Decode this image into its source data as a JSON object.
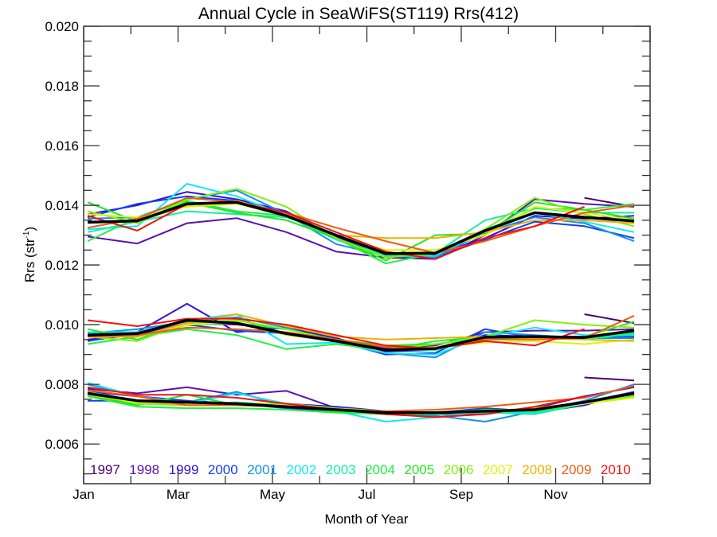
{
  "chart_data": {
    "type": "line",
    "title": "Annual Cycle in SeaWiFS(ST119) Rrs(412)",
    "xlabel": "Month of Year",
    "ylabel": "Rrs (str",
    "ylabel_superscript": "-1",
    "ylabel_close": ")",
    "ylim": [
      0.00467,
      0.02
    ],
    "yticks": [
      0.006,
      0.008,
      0.01,
      0.012,
      0.014,
      0.016,
      0.018,
      0.02
    ],
    "ytick_labels": [
      "0.006",
      "0.008",
      "0.010",
      "0.012",
      "0.014",
      "0.016",
      "0.018",
      "0.020"
    ],
    "xticks_major_labels": [
      "Jan",
      "Mar",
      "May",
      "Jul",
      "Sep",
      "Nov"
    ],
    "x": [
      "Jan",
      "Feb",
      "Mar",
      "Apr",
      "May",
      "Jun",
      "Jul",
      "Aug",
      "Sep",
      "Oct",
      "Nov",
      "Dec"
    ],
    "grid": false,
    "legend_position": "bottom-inside",
    "mean_color": "#000000",
    "bands": [
      "upper",
      "middle",
      "lower"
    ],
    "series": [
      {
        "name": "1997",
        "color": "#4a0070",
        "upper": [
          null,
          null,
          null,
          null,
          null,
          null,
          null,
          null,
          null,
          null,
          0.01425,
          0.01395
        ],
        "middle": [
          null,
          null,
          null,
          null,
          null,
          null,
          null,
          null,
          null,
          null,
          0.01035,
          0.01005
        ],
        "lower": [
          null,
          null,
          null,
          null,
          null,
          null,
          null,
          null,
          null,
          null,
          0.00823,
          0.00813
        ]
      },
      {
        "name": "1998",
        "color": "#5a10b0",
        "upper": [
          0.01295,
          0.01272,
          0.0134,
          0.01357,
          0.0131,
          0.01245,
          0.01225,
          0.0122,
          0.013,
          0.0142,
          0.01405,
          0.01395
        ],
        "middle": [
          0.0095,
          0.00965,
          0.01005,
          0.01,
          0.00985,
          0.0095,
          0.0092,
          0.0093,
          0.00975,
          0.0098,
          0.0098,
          0.00985
        ],
        "lower": [
          0.00785,
          0.0077,
          0.0079,
          0.00765,
          0.00778,
          0.0072,
          0.00705,
          0.007,
          0.007,
          0.0072,
          0.0076,
          0.0079
        ]
      },
      {
        "name": "1999",
        "color": "#3010e0",
        "upper": [
          0.0137,
          0.014,
          0.01445,
          0.0142,
          0.0138,
          0.01295,
          0.01235,
          0.01235,
          0.0129,
          0.01365,
          0.01355,
          0.01365
        ],
        "middle": [
          0.0097,
          0.00975,
          0.0107,
          0.00975,
          0.0099,
          0.00955,
          0.0091,
          0.00915,
          0.00965,
          0.0096,
          0.0096,
          0.0097
        ],
        "lower": [
          0.00775,
          0.0076,
          0.00745,
          0.0073,
          0.00735,
          0.00725,
          0.0071,
          0.007,
          0.0071,
          0.00705,
          0.0073,
          0.00775
        ]
      },
      {
        "name": "2000",
        "color": "#1040f0",
        "upper": [
          0.0136,
          0.01405,
          0.0143,
          0.01415,
          0.01375,
          0.0129,
          0.0123,
          0.01225,
          0.01285,
          0.01345,
          0.0133,
          0.0129
        ],
        "middle": [
          0.00945,
          0.0097,
          0.01,
          0.0098,
          0.0097,
          0.00945,
          0.009,
          0.00905,
          0.00985,
          0.00955,
          0.00955,
          0.0096
        ],
        "lower": [
          0.00745,
          0.00745,
          0.00745,
          0.00735,
          0.0072,
          0.0071,
          0.007,
          0.00705,
          0.0072,
          0.0071,
          0.0074,
          0.00775
        ]
      },
      {
        "name": "2001",
        "color": "#1090f0",
        "upper": [
          0.01355,
          0.0136,
          0.0142,
          0.0145,
          0.0137,
          0.0127,
          0.0123,
          0.01225,
          0.0131,
          0.0136,
          0.0134,
          0.0128
        ],
        "middle": [
          0.0097,
          0.00985,
          0.0101,
          0.01025,
          0.0099,
          0.0094,
          0.00905,
          0.0089,
          0.00975,
          0.00965,
          0.00955,
          0.00955
        ],
        "lower": [
          0.008,
          0.0076,
          0.0074,
          0.00775,
          0.00725,
          0.00715,
          0.007,
          0.00695,
          0.00675,
          0.0071,
          0.00745,
          0.008
        ]
      },
      {
        "name": "2002",
        "color": "#10e8f0",
        "upper": [
          0.0132,
          0.0133,
          0.01472,
          0.0143,
          0.01365,
          0.01285,
          0.0123,
          0.0123,
          0.0132,
          0.01375,
          0.01345,
          0.0131
        ],
        "middle": [
          0.00975,
          0.00975,
          0.01015,
          0.01035,
          0.00935,
          0.0094,
          0.00905,
          0.009,
          0.0096,
          0.0099,
          0.00965,
          0.00965
        ],
        "lower": [
          0.00805,
          0.0076,
          0.00735,
          0.0077,
          0.00735,
          0.0071,
          0.00675,
          0.0069,
          0.0071,
          0.00705,
          0.0074,
          0.00755
        ]
      },
      {
        "name": "2003",
        "color": "#10f0a0",
        "upper": [
          0.0131,
          0.01345,
          0.0138,
          0.0137,
          0.0136,
          0.013,
          0.0123,
          0.0124,
          0.0135,
          0.0139,
          0.01375,
          0.01375
        ],
        "middle": [
          0.0096,
          0.0096,
          0.01,
          0.01005,
          0.00965,
          0.0095,
          0.00915,
          0.00915,
          0.0096,
          0.00955,
          0.0095,
          0.0097
        ],
        "lower": [
          0.00775,
          0.00745,
          0.0073,
          0.0074,
          0.0073,
          0.00715,
          0.0071,
          0.00705,
          0.00705,
          0.007,
          0.00735,
          0.00765
        ]
      },
      {
        "name": "2004",
        "color": "#20f040",
        "upper": [
          0.0128,
          0.0136,
          0.01415,
          0.0138,
          0.01365,
          0.0129,
          0.01205,
          0.0124,
          0.0131,
          0.0139,
          0.01385,
          0.01405
        ],
        "middle": [
          0.00935,
          0.0096,
          0.00985,
          0.00965,
          0.00918,
          0.00935,
          0.00915,
          0.00945,
          0.0096,
          0.0096,
          0.00955,
          0.00975
        ],
        "lower": [
          0.0076,
          0.00725,
          0.0072,
          0.0072,
          0.00715,
          0.00705,
          0.007,
          0.007,
          0.0071,
          0.0071,
          0.00735,
          0.00765
        ]
      },
      {
        "name": "2005",
        "color": "#20e820",
        "upper": [
          0.0141,
          0.01345,
          0.0141,
          0.01375,
          0.0135,
          0.0129,
          0.01215,
          0.013,
          0.01305,
          0.0141,
          0.01385,
          0.01355
        ],
        "middle": [
          0.00985,
          0.0095,
          0.01,
          0.01005,
          0.00985,
          0.0095,
          0.0093,
          0.00935,
          0.00955,
          0.00955,
          0.0096,
          0.0101
        ],
        "lower": [
          0.00765,
          0.0073,
          0.00765,
          0.0073,
          0.00725,
          0.0071,
          0.00705,
          0.00705,
          0.00715,
          0.00715,
          0.0074,
          0.0077
        ]
      },
      {
        "name": "2006",
        "color": "#80f010",
        "upper": [
          0.0138,
          0.0134,
          0.0142,
          0.01455,
          0.01395,
          0.0129,
          0.01225,
          0.0124,
          0.0132,
          0.01425,
          0.0137,
          0.0133
        ],
        "middle": [
          0.0096,
          0.00945,
          0.01005,
          0.01015,
          0.00985,
          0.00945,
          0.00915,
          0.00935,
          0.0096,
          0.01015,
          0.01,
          0.0099
        ],
        "lower": [
          0.0077,
          0.00735,
          0.0073,
          0.00735,
          0.00735,
          0.0072,
          0.0071,
          0.00705,
          0.0071,
          0.0072,
          0.0074,
          0.0076
        ]
      },
      {
        "name": "2007",
        "color": "#e0f010",
        "upper": [
          0.0137,
          0.0136,
          0.01395,
          0.01405,
          0.01365,
          0.013,
          0.0125,
          0.0125,
          0.013,
          0.01395,
          0.01375,
          0.0135
        ],
        "middle": [
          0.00965,
          0.0096,
          0.01,
          0.0101,
          0.00965,
          0.00945,
          0.00915,
          0.00925,
          0.0094,
          0.00945,
          0.00935,
          0.0095
        ],
        "lower": [
          0.00765,
          0.0074,
          0.00735,
          0.00735,
          0.0073,
          0.00715,
          0.00705,
          0.00705,
          0.0071,
          0.00715,
          0.00735,
          0.00755
        ]
      },
      {
        "name": "2008",
        "color": "#f0b000",
        "upper": [
          0.01345,
          0.01345,
          0.014,
          0.01415,
          0.0137,
          0.013,
          0.0129,
          0.0129,
          0.0131,
          0.0135,
          0.0135,
          0.0134
        ],
        "middle": [
          0.0096,
          0.0096,
          0.01005,
          0.01035,
          0.00995,
          0.0096,
          0.0095,
          0.00955,
          0.0096,
          0.00955,
          0.0095,
          0.00945
        ],
        "lower": [
          0.00765,
          0.00745,
          0.0073,
          0.0073,
          0.00725,
          0.00715,
          0.0071,
          0.00705,
          0.0071,
          0.0072,
          0.0074,
          0.0077
        ]
      },
      {
        "name": "2009",
        "color": "#f05a10",
        "upper": [
          0.01325,
          0.01355,
          0.01425,
          0.0141,
          0.01375,
          0.01325,
          0.0128,
          0.0124,
          0.0128,
          0.0133,
          0.01375,
          0.014
        ],
        "middle": [
          0.0096,
          0.00965,
          0.0099,
          0.00985,
          0.00975,
          0.0095,
          0.00925,
          0.0092,
          0.0095,
          0.0095,
          0.00955,
          0.0103
        ],
        "lower": [
          0.0078,
          0.0076,
          0.0073,
          0.0073,
          0.00725,
          0.00715,
          0.0071,
          0.00715,
          0.00725,
          0.0074,
          0.00755,
          0.00795
        ]
      },
      {
        "name": "2010",
        "color": "#f01010",
        "upper": [
          0.01365,
          0.01315,
          0.01405,
          0.0141,
          0.01375,
          0.0131,
          0.01245,
          0.0122,
          0.0129,
          0.0133,
          0.01395,
          null
        ],
        "middle": [
          0.01015,
          0.00995,
          0.0102,
          0.0102,
          0.01,
          0.00965,
          0.0093,
          0.0092,
          0.00945,
          0.0093,
          0.00985,
          null
        ],
        "lower": [
          0.0079,
          0.00765,
          0.00765,
          0.00755,
          0.00735,
          0.00715,
          0.007,
          0.0069,
          0.007,
          0.00725,
          0.0076,
          null
        ]
      }
    ],
    "mean": {
      "name": "Mean",
      "upper": [
        0.01343,
        0.01348,
        0.01405,
        0.0141,
        0.01365,
        0.013,
        0.01238,
        0.0124,
        0.01315,
        0.01375,
        0.0136,
        0.01347
      ],
      "middle": [
        0.00965,
        0.0097,
        0.01015,
        0.01005,
        0.0097,
        0.00945,
        0.00915,
        0.0092,
        0.00958,
        0.0096,
        0.00957,
        0.0098
      ],
      "lower": [
        0.0077,
        0.00745,
        0.0074,
        0.00735,
        0.00725,
        0.00715,
        0.00705,
        0.00705,
        0.0071,
        0.00715,
        0.0074,
        0.0077
      ]
    }
  }
}
